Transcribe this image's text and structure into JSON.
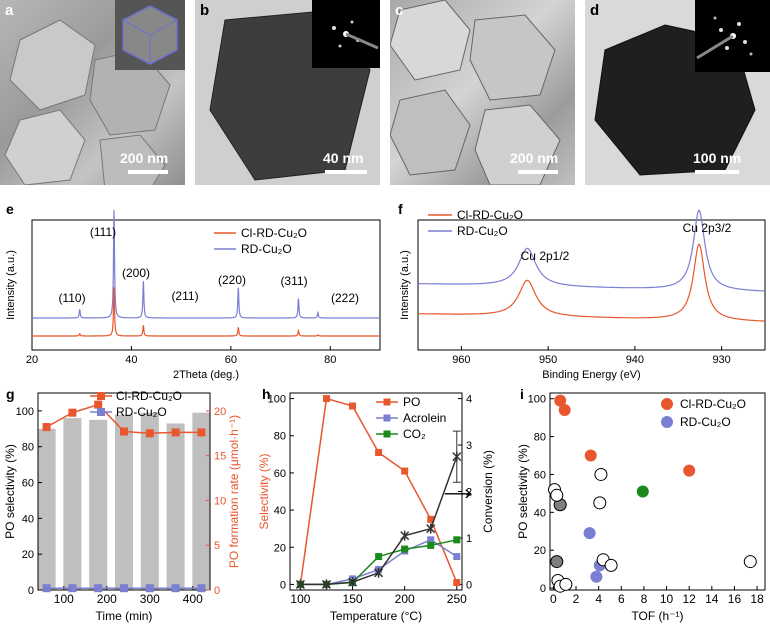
{
  "micrographs": [
    {
      "label": "a",
      "scale": "200 nm"
    },
    {
      "label": "b",
      "scale": "40 nm"
    },
    {
      "label": "c",
      "scale": "200 nm"
    },
    {
      "label": "d",
      "scale": "100 nm"
    }
  ],
  "colors": {
    "cl": "#e8572e",
    "rd": "#7b7fd1",
    "co2": "#1a8a1a",
    "conv": "#333333",
    "bar": "#bfbfbf",
    "cl_dark": "#e8572e"
  },
  "chart_data": [
    {
      "id": "e",
      "type": "line",
      "label": "e",
      "xlabel": "2Theta (deg.)",
      "ylabel": "Intensity (a.u.)",
      "xlim": [
        20,
        90
      ],
      "xticks": [
        20,
        40,
        60,
        80
      ],
      "series": [
        {
          "name": "Cl-RD-Cu₂O"
        },
        {
          "name": "RD-Cu₂O"
        }
      ],
      "peaks": [
        {
          "label": "(110)",
          "x": 29.6,
          "h_rd": 0.08,
          "h_cl": 0.02
        },
        {
          "label": "(111)",
          "x": 36.5,
          "h_rd": 1.0,
          "h_cl": 0.45
        },
        {
          "label": "(200)",
          "x": 42.4,
          "h_rd": 0.34,
          "h_cl": 0.1
        },
        {
          "label": "(211)",
          "x": 52.5,
          "h_rd": 0.0,
          "h_cl": 0.0
        },
        {
          "label": "(220)",
          "x": 61.5,
          "h_rd": 0.28,
          "h_cl": 0.08
        },
        {
          "label": "(311)",
          "x": 73.6,
          "h_rd": 0.18,
          "h_cl": 0.05
        },
        {
          "label": "(222)",
          "x": 77.5,
          "h_rd": 0.05,
          "h_cl": 0.01
        }
      ]
    },
    {
      "id": "f",
      "type": "line",
      "label": "f",
      "xlabel": "Binding Energy (eV)",
      "ylabel": "Intensity (a.u.)",
      "xlim": [
        965,
        925
      ],
      "xticks": [
        960,
        950,
        940,
        930
      ],
      "series": [
        {
          "name": "Cl-RD-Cu₂O"
        },
        {
          "name": "RD-Cu₂O"
        }
      ],
      "annotations": [
        "Cu 2p1/2",
        "Cu 2p3/2"
      ],
      "peaks": [
        {
          "x": 952.4,
          "h": 0.3
        },
        {
          "x": 932.6,
          "h": 0.75
        }
      ]
    },
    {
      "id": "g",
      "type": "bar",
      "label": "g",
      "xlabel": "Time (min)",
      "ylabel": "PO selectivity (%)",
      "y2label": "PO formation rate (μmol·h⁻¹)",
      "xlim": [
        40,
        440
      ],
      "xticks": [
        100,
        200,
        300,
        400
      ],
      "ylim": [
        0,
        110
      ],
      "yticks": [
        0,
        20,
        40,
        60,
        80,
        100
      ],
      "y2lim": [
        0,
        22
      ],
      "y2ticks": [
        0,
        5,
        10,
        15,
        20
      ],
      "bar_x": [
        60,
        120,
        180,
        240,
        300,
        360,
        420
      ],
      "bar_values": [
        90,
        96,
        95,
        98,
        99,
        93,
        99
      ],
      "series": [
        {
          "name": "Cl-RD-Cu₂O",
          "axis": "y2",
          "x": [
            60,
            120,
            180,
            240,
            300,
            360,
            420
          ],
          "values": [
            18.2,
            19.8,
            20.7,
            17.7,
            17.5,
            17.6,
            17.6
          ]
        },
        {
          "name": "RD-Cu₂O",
          "axis": "y2",
          "x": [
            60,
            120,
            180,
            240,
            300,
            360,
            420
          ],
          "values": [
            0.2,
            0.2,
            0.2,
            0.2,
            0.2,
            0.2,
            0.2
          ]
        }
      ]
    },
    {
      "id": "h",
      "type": "line",
      "label": "h",
      "xlabel": "Temperature (°C)",
      "ylabel": "Selectivity (%)",
      "y2label": "Conversion (%)",
      "xlim": [
        90,
        255
      ],
      "xticks": [
        100,
        150,
        200,
        250
      ],
      "ylim": [
        -3,
        103
      ],
      "yticks": [
        0,
        20,
        40,
        60,
        80,
        100
      ],
      "y2lim": [
        -0.12,
        4.12
      ],
      "y2ticks": [
        0,
        1,
        2,
        3,
        4
      ],
      "series": [
        {
          "name": "PO",
          "x": [
            100,
            125,
            150,
            175,
            200,
            225,
            250
          ],
          "values": [
            0,
            100,
            96,
            71,
            61,
            35,
            1
          ]
        },
        {
          "name": "Acrolein",
          "x": [
            100,
            125,
            150,
            175,
            200,
            225,
            250
          ],
          "values": [
            0,
            0,
            3,
            8,
            18,
            24,
            15
          ]
        },
        {
          "name": "CO₂",
          "x": [
            100,
            125,
            150,
            175,
            200,
            225,
            250
          ],
          "values": [
            0,
            0,
            1,
            15,
            19,
            21,
            24
          ]
        },
        {
          "name": "",
          "axis": "y2",
          "x": [
            100,
            125,
            150,
            175,
            200,
            225,
            250
          ],
          "values": [
            0,
            0,
            0.05,
            0.25,
            1.05,
            1.2,
            2.75
          ]
        }
      ]
    },
    {
      "id": "i",
      "type": "scatter",
      "label": "i",
      "xlabel": "TOF (h⁻¹)",
      "ylabel": "PO selectivity (%)",
      "xlim": [
        -0.3,
        18.7
      ],
      "xticks": [
        0,
        2,
        4,
        6,
        8,
        10,
        12,
        14,
        16,
        18
      ],
      "ylim": [
        -1,
        103
      ],
      "yticks": [
        0,
        20,
        40,
        60,
        80,
        100
      ],
      "series": [
        {
          "name": "Cl-RD-Cu₂O",
          "points": [
            [
              0.6,
              99
            ],
            [
              1.0,
              94
            ],
            [
              3.3,
              70
            ],
            [
              12,
              62
            ]
          ]
        },
        {
          "name": "RD-Cu₂O",
          "points": [
            [
              3.2,
              29
            ],
            [
              3.8,
              6
            ],
            [
              4.1,
              12
            ]
          ]
        },
        {
          "name": "",
          "points": [
            [
              7.9,
              51
            ]
          ]
        },
        {
          "name": "",
          "points": [
            [
              0.6,
              44
            ],
            [
              0.3,
              14
            ]
          ]
        },
        {
          "name": "",
          "points": [
            [
              0.1,
              52
            ],
            [
              0.3,
              49
            ],
            [
              4.2,
              60
            ],
            [
              4.1,
              45
            ],
            [
              4.4,
              15
            ],
            [
              5.1,
              12
            ],
            [
              17.4,
              14
            ],
            [
              0.4,
              4
            ],
            [
              0.6,
              1
            ],
            [
              1.1,
              2
            ]
          ]
        }
      ]
    }
  ]
}
